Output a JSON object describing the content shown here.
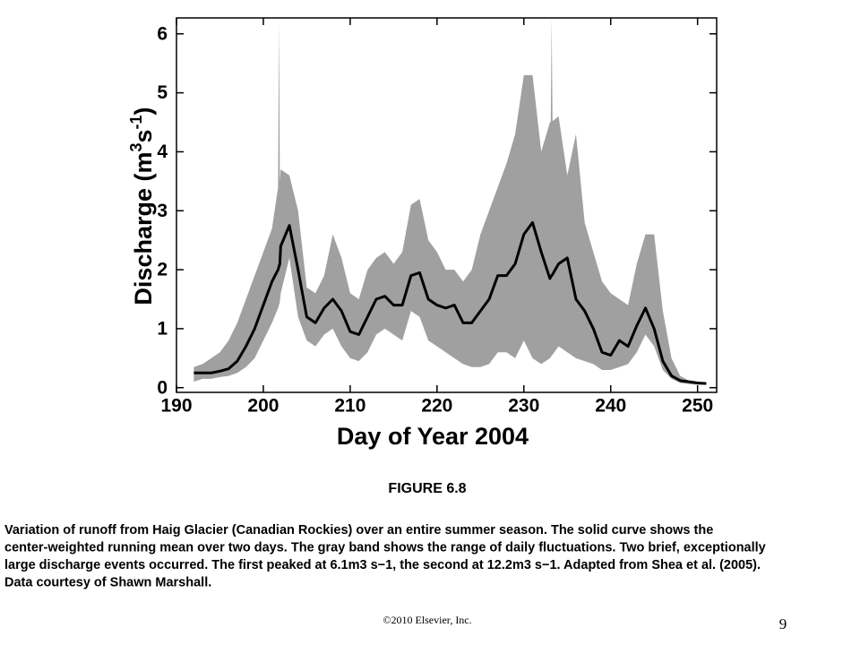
{
  "chart_data": {
    "type": "band_line",
    "x_label": "Day of Year 2004",
    "y_label": [
      {
        "text": "Discharge (m"
      },
      {
        "text": "3",
        "sup": true
      },
      {
        "text": "s"
      },
      {
        "text": "-1",
        "sup": true
      },
      {
        "text": ")"
      }
    ],
    "x": [
      192,
      193,
      194,
      195,
      196,
      197,
      198,
      199,
      200,
      201,
      201.7,
      201.8,
      201.9,
      202,
      203,
      204,
      205,
      206,
      207,
      208,
      209,
      210,
      211,
      212,
      213,
      214,
      215,
      216,
      217,
      218,
      219,
      220,
      221,
      222,
      223,
      224,
      225,
      226,
      227,
      228,
      229,
      230,
      231,
      232,
      233,
      233.1,
      233.2,
      233.3,
      234,
      235,
      236,
      237,
      238,
      239,
      240,
      241,
      242,
      243,
      244,
      245,
      246,
      247,
      248,
      249,
      250,
      251
    ],
    "band": {
      "color": "#a0a0a0",
      "upper": [
        0.35,
        0.4,
        0.5,
        0.6,
        0.8,
        1.1,
        1.5,
        1.9,
        2.3,
        2.7,
        3.4,
        6.2,
        3.5,
        3.7,
        3.6,
        3.0,
        1.7,
        1.6,
        1.9,
        2.6,
        2.2,
        1.6,
        1.5,
        2.0,
        2.2,
        2.3,
        2.1,
        2.3,
        3.1,
        3.2,
        2.5,
        2.3,
        2.0,
        2.0,
        1.8,
        2.0,
        2.6,
        3.0,
        3.4,
        3.8,
        4.3,
        5.3,
        5.3,
        4.0,
        4.5,
        4.5,
        6.27,
        4.52,
        4.6,
        3.6,
        4.3,
        2.8,
        2.3,
        1.8,
        1.6,
        1.5,
        1.4,
        2.1,
        2.6,
        2.6,
        1.3,
        0.5,
        0.2,
        0.12,
        0.1,
        0.08
      ],
      "lower": [
        0.1,
        0.15,
        0.15,
        0.18,
        0.2,
        0.25,
        0.35,
        0.5,
        0.8,
        1.1,
        1.35,
        1.4,
        1.45,
        1.6,
        2.2,
        1.2,
        0.8,
        0.7,
        0.9,
        1.0,
        0.7,
        0.5,
        0.45,
        0.6,
        0.9,
        1.0,
        0.9,
        0.8,
        1.3,
        1.2,
        0.8,
        0.7,
        0.6,
        0.5,
        0.4,
        0.35,
        0.35,
        0.4,
        0.6,
        0.6,
        0.5,
        0.8,
        0.5,
        0.4,
        0.5,
        0.52,
        0.54,
        0.56,
        0.7,
        0.6,
        0.5,
        0.45,
        0.4,
        0.3,
        0.3,
        0.35,
        0.4,
        0.6,
        0.9,
        0.7,
        0.3,
        0.15,
        0.08,
        0.06,
        0.05,
        0.05
      ]
    },
    "series": [
      {
        "color": "#000000",
        "values": [
          0.25,
          0.25,
          0.25,
          0.28,
          0.32,
          0.45,
          0.7,
          1.0,
          1.4,
          1.8,
          2.0,
          2.05,
          2.1,
          2.4,
          2.75,
          2.0,
          1.2,
          1.1,
          1.35,
          1.5,
          1.3,
          0.95,
          0.9,
          1.2,
          1.5,
          1.55,
          1.4,
          1.4,
          1.9,
          1.95,
          1.5,
          1.4,
          1.35,
          1.4,
          1.1,
          1.1,
          1.3,
          1.5,
          1.9,
          1.9,
          2.1,
          2.6,
          2.8,
          2.3,
          1.85,
          1.88,
          1.9,
          1.92,
          2.1,
          2.2,
          1.5,
          1.3,
          1.0,
          0.6,
          0.55,
          0.8,
          0.7,
          1.05,
          1.35,
          1.0,
          0.45,
          0.2,
          0.12,
          0.1,
          0.08,
          0.07
        ]
      }
    ],
    "xlim": [
      190,
      252.2
    ],
    "xticks": [
      190,
      200,
      210,
      220,
      230,
      240,
      250
    ],
    "ylim": [
      -0.08,
      6.27
    ],
    "yticks": [
      0,
      1,
      2,
      3,
      4,
      5,
      6
    ]
  },
  "figure_label": "FIGURE 6.8",
  "caption_lines": [
    "Variation of runoff from Haig Glacier (Canadian Rockies) over an entire summer season. The solid curve shows the",
    "center-weighted running mean over two days. The gray band shows the range of daily fluctuations.  Two brief, exceptionally",
    "large discharge events occurred. The first peaked at 6.1m3 s−1, the second at 12.2m3 s−1. Adapted from Shea et al. (2005).",
    "Data courtesy of Shawn Marshall."
  ],
  "copyright": "©2010 Elsevier,  Inc.",
  "page_number": "9"
}
